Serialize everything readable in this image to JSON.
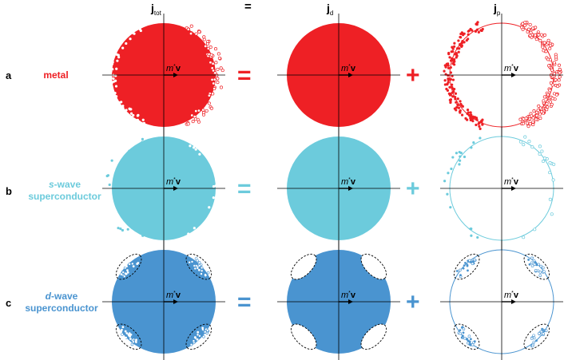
{
  "columns": {
    "tot": {
      "symbol": "j",
      "subscript": "tot"
    },
    "equals_header": "=",
    "d": {
      "symbol": "j",
      "subscript": "d"
    },
    "p": {
      "symbol": "j",
      "subscript": "p"
    }
  },
  "axis_label": {
    "mass": "m",
    "star": "*",
    "velocity": "v"
  },
  "rows": [
    {
      "letter": "a",
      "name_line1": "metal",
      "name_line1_italic_prefix": "",
      "name_line2": "",
      "color": "#ee2025",
      "op_equals": "=",
      "op_plus": "+"
    },
    {
      "letter": "b",
      "name_line1": "-wave",
      "name_line1_italic_prefix": "s",
      "name_line2": "superconductor",
      "color": "#6ccbdc",
      "op_equals": "=",
      "op_plus": "+"
    },
    {
      "letter": "c",
      "name_line1": "-wave",
      "name_line1_italic_prefix": "d",
      "name_line2": "superconductor",
      "color": "#4a94d0",
      "op_equals": "=",
      "op_plus": "+"
    }
  ]
}
